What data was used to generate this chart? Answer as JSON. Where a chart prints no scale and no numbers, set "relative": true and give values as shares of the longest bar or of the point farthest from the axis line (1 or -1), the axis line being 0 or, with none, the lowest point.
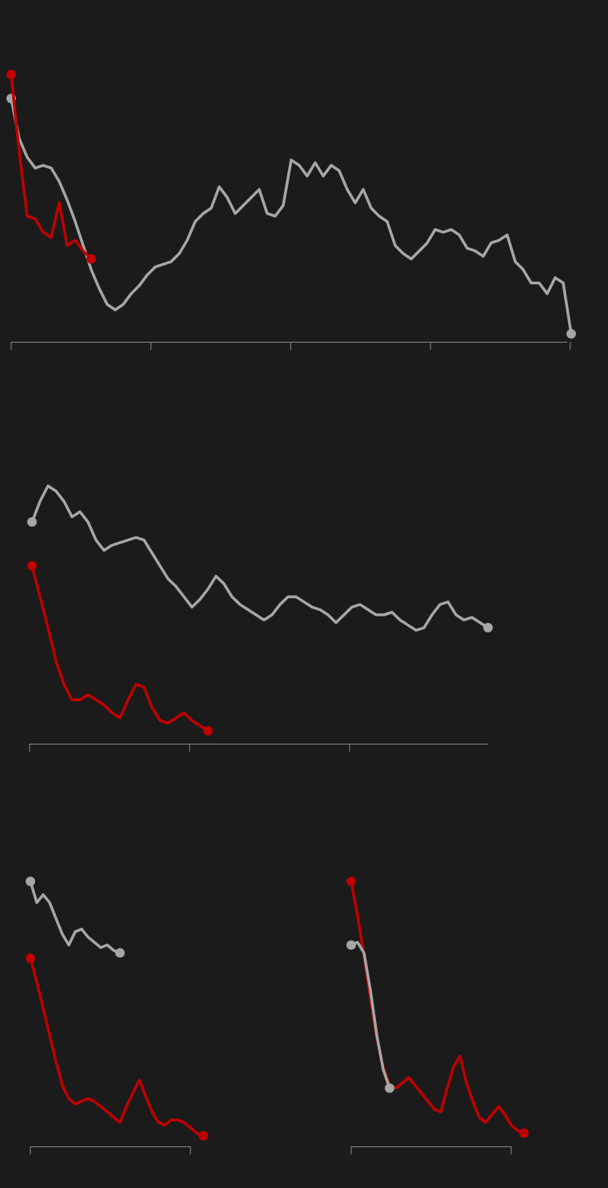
{
  "chart_data": [
    {
      "type": "line",
      "relative": true,
      "categories": [
        null,
        null,
        null,
        null,
        null,
        null,
        null,
        null,
        null,
        null,
        null,
        null,
        null,
        null,
        null,
        null,
        null,
        null,
        null,
        null,
        null,
        null,
        null,
        null,
        null,
        null,
        null,
        null,
        null,
        null,
        null,
        null,
        null,
        null,
        null,
        null,
        null,
        null,
        null,
        null,
        null,
        null,
        null,
        null,
        null,
        null,
        null,
        null,
        null,
        null,
        null,
        null,
        null,
        null,
        null,
        null,
        null,
        null,
        null,
        null,
        null,
        null,
        null,
        null,
        null,
        null,
        null,
        null,
        null,
        null,
        null
      ],
      "series": [
        {
          "color": "#a6a6a6",
          "values": [
            0.91,
            0.76,
            0.69,
            0.65,
            0.66,
            0.65,
            0.6,
            0.53,
            0.45,
            0.36,
            0.27,
            0.2,
            0.14,
            0.12,
            0.14,
            0.18,
            0.21,
            0.25,
            0.28,
            0.29,
            0.3,
            0.33,
            0.38,
            0.45,
            0.48,
            0.5,
            0.58,
            0.54,
            0.48,
            0.51,
            0.54,
            0.57,
            0.48,
            0.47,
            0.51,
            0.68,
            0.66,
            0.62,
            0.67,
            0.62,
            0.66,
            0.64,
            0.57,
            0.52,
            0.57,
            0.5,
            0.47,
            0.45,
            0.36,
            0.33,
            0.31,
            0.34,
            0.37,
            0.42,
            0.41,
            0.42,
            0.4,
            0.35,
            0.34,
            0.32,
            0.37,
            0.38,
            0.4,
            0.3,
            0.27,
            0.22,
            0.22,
            0.18,
            0.24,
            0.22,
            0.03
          ]
        },
        {
          "color": "#c00000",
          "values": [
            1,
            0.71,
            0.47,
            0.46,
            0.41,
            0.39,
            0.52,
            0.36,
            0.38,
            0.34,
            0.31,
            null,
            null,
            null,
            null,
            null,
            null,
            null,
            null,
            null,
            null,
            null,
            null,
            null,
            null,
            null,
            null,
            null,
            null,
            null,
            null,
            null,
            null,
            null,
            null,
            null,
            null,
            null,
            null,
            null,
            null,
            null,
            null,
            null,
            null,
            null,
            null,
            null,
            null,
            null,
            null,
            null,
            null,
            null,
            null,
            null,
            null,
            null,
            null,
            null,
            null,
            null,
            null,
            null,
            null,
            null,
            null,
            null,
            null,
            null,
            null
          ]
        }
      ]
    },
    {
      "type": "line",
      "relative": true,
      "categories": [
        null,
        null,
        null,
        null,
        null,
        null,
        null,
        null,
        null,
        null,
        null,
        null,
        null,
        null,
        null,
        null,
        null,
        null,
        null,
        null,
        null,
        null,
        null,
        null,
        null,
        null,
        null,
        null,
        null,
        null,
        null,
        null,
        null,
        null,
        null,
        null,
        null,
        null,
        null,
        null,
        null,
        null,
        null,
        null,
        null,
        null,
        null,
        null,
        null,
        null,
        null,
        null,
        null,
        null,
        null,
        null,
        null,
        null
      ],
      "series": [
        {
          "color": "#a6a6a6",
          "values": [
            0.86,
            0.94,
            1,
            0.98,
            0.94,
            0.88,
            0.9,
            0.86,
            0.79,
            0.75,
            0.77,
            0.78,
            0.79,
            0.8,
            0.79,
            0.74,
            0.69,
            0.64,
            0.61,
            0.57,
            0.53,
            0.56,
            0.6,
            0.65,
            0.62,
            0.57,
            0.54,
            0.52,
            0.5,
            0.48,
            0.5,
            0.54,
            0.57,
            0.57,
            0.55,
            0.53,
            0.52,
            0.5,
            0.47,
            0.5,
            0.53,
            0.54,
            0.52,
            0.5,
            0.5,
            0.51,
            0.48,
            0.46,
            0.44,
            0.45,
            0.5,
            0.54,
            0.55,
            0.5,
            0.48,
            0.49,
            0.47,
            0.45
          ]
        },
        {
          "color": "#c00000",
          "values": [
            0.69,
            0.57,
            0.45,
            0.32,
            0.23,
            0.17,
            0.17,
            0.19,
            0.17,
            0.15,
            0.12,
            0.1,
            0.17,
            0.23,
            0.22,
            0.14,
            0.09,
            0.08,
            0.1,
            0.12,
            0.09,
            0.07,
            0.05,
            null,
            null,
            null,
            null,
            null,
            null,
            null,
            null,
            null,
            null,
            null,
            null,
            null,
            null,
            null,
            null,
            null,
            null,
            null,
            null,
            null,
            null,
            null,
            null,
            null,
            null,
            null,
            null,
            null,
            null,
            null,
            null,
            null,
            null,
            null
          ]
        }
      ]
    },
    {
      "type": "line",
      "relative": true,
      "categories": [
        null,
        null,
        null,
        null,
        null,
        null,
        null,
        null,
        null,
        null,
        null,
        null,
        null,
        null,
        null,
        null,
        null,
        null,
        null,
        null,
        null,
        null,
        null,
        null,
        null,
        null,
        null,
        null
      ],
      "series": [
        {
          "color": "#a6a6a6",
          "values": [
            1.0,
            0.92,
            0.95,
            0.92,
            0.86,
            0.8,
            0.76,
            0.81,
            0.82,
            0.79,
            0.77,
            0.75,
            0.76,
            0.74,
            0.73,
            null,
            null,
            null,
            null,
            null,
            null,
            null,
            null,
            null,
            null,
            null,
            null,
            null
          ]
        },
        {
          "color": "#c00000",
          "values": [
            0.71,
            0.62,
            0.52,
            0.42,
            0.32,
            0.23,
            0.18,
            0.16,
            0.17,
            0.18,
            0.17,
            0.15,
            0.13,
            0.11,
            0.09,
            0.15,
            0.2,
            0.25,
            0.19,
            0.13,
            0.09,
            0.08,
            0.1,
            0.1,
            0.09,
            0.07,
            0.05,
            0.04
          ]
        }
      ]
    },
    {
      "type": "line",
      "relative": true,
      "categories": [
        null,
        null,
        null,
        null,
        null,
        null,
        null,
        null,
        null,
        null,
        null,
        null,
        null,
        null,
        null,
        null,
        null,
        null,
        null,
        null,
        null,
        null,
        null,
        null,
        null,
        null,
        null,
        null
      ],
      "series": [
        {
          "color": "#c00000",
          "values": [
            1,
            0.87,
            0.72,
            0.56,
            0.41,
            0.3,
            0.23,
            0.22,
            0.24,
            0.26,
            0.23,
            0.2,
            0.17,
            0.14,
            0.13,
            0.22,
            0.3,
            0.34,
            0.24,
            0.17,
            0.11,
            0.09,
            0.12,
            0.15,
            0.12,
            0.08,
            0.06,
            0.05
          ]
        },
        {
          "color": "#a6a6a6",
          "values": [
            0.76,
            0.77,
            0.73,
            0.59,
            0.42,
            0.29,
            0.22,
            null,
            null,
            null,
            null,
            null,
            null,
            null,
            null,
            null,
            null,
            null,
            null,
            null,
            null,
            null,
            null,
            null,
            null,
            null,
            null,
            null
          ]
        }
      ]
    }
  ]
}
